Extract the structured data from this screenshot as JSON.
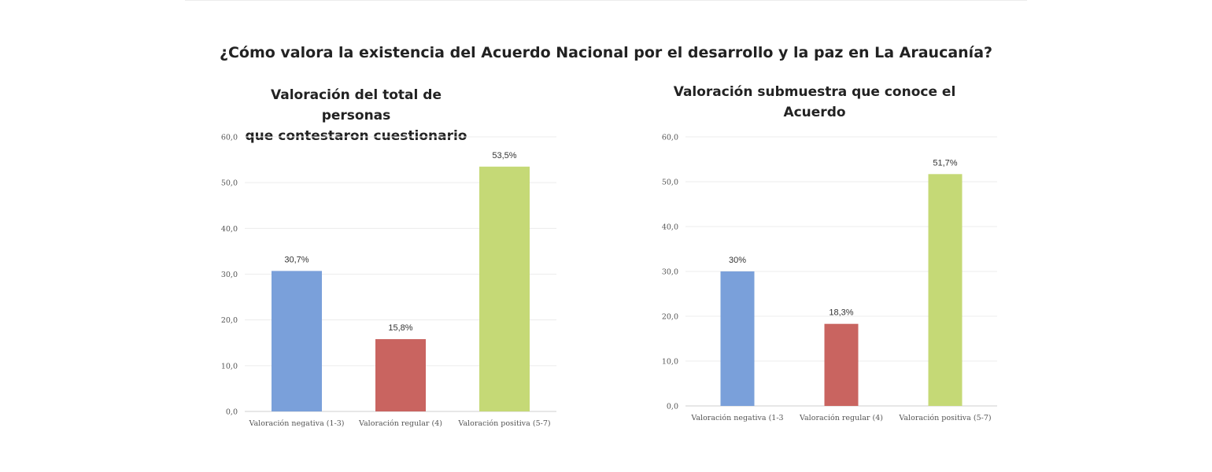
{
  "main_title": "¿Cómo valora la existencia del Acuerdo Nacional por el desarrollo y la paz en La Araucanía?",
  "chart_data": [
    {
      "type": "bar",
      "title_lines": [
        "Valoración del total de personas",
        "que contestaron cuestionario"
      ],
      "categories": [
        "Valoración negativa (1-3)",
        "Valoración regular (4)",
        "Valoración positiva (5-7)"
      ],
      "values": [
        30.7,
        15.8,
        53.5
      ],
      "data_labels": [
        "30,7%",
        "15,8%",
        "53,5%"
      ],
      "colors": [
        "#7aa0da",
        "#c96460",
        "#c5d976"
      ],
      "ylim": [
        0,
        60
      ],
      "yticks": [
        0,
        10,
        20,
        30,
        40,
        50,
        60
      ],
      "ytick_labels": [
        "0,0",
        "10,0",
        "20,0",
        "30,0",
        "40,0",
        "50,0",
        "60,0"
      ],
      "grid": true,
      "legend": "none"
    },
    {
      "type": "bar",
      "title_lines": [
        "Valoración submuestra que conoce el Acuerdo"
      ],
      "categories": [
        "Valoración negativa (1-3",
        "Valoración regular (4)",
        "Valoración positiva (5-7)"
      ],
      "values": [
        30,
        18.3,
        51.7
      ],
      "data_labels": [
        "30%",
        "18,3%",
        "51,7%"
      ],
      "colors": [
        "#7aa0da",
        "#c96460",
        "#c5d976"
      ],
      "ylim": [
        0,
        60
      ],
      "yticks": [
        0,
        10,
        20,
        30,
        40,
        50,
        60
      ],
      "ytick_labels": [
        "0,0",
        "10,0",
        "20,0",
        "30,0",
        "40,0",
        "50,0",
        "60,0"
      ],
      "grid": true,
      "legend": "none"
    }
  ]
}
